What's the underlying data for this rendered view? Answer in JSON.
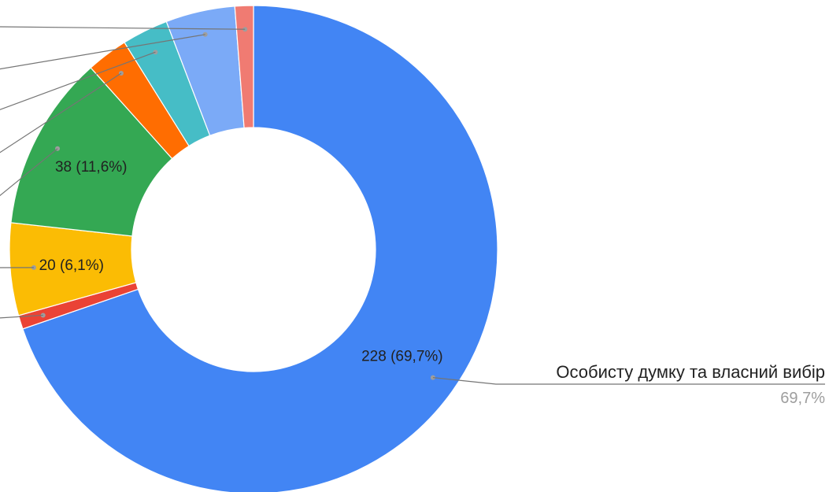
{
  "chart_data": {
    "type": "pie",
    "donut": true,
    "title": "",
    "slices": [
      {
        "value": 228,
        "percent": "69,7%",
        "label": "228 (69,7%)",
        "color": "#4285f4",
        "legend": "Особисту думку та власний вибір",
        "legend_percent": "69,7%"
      },
      {
        "value": 3,
        "percent": "0,9%",
        "label": "",
        "color": "#ea4335"
      },
      {
        "value": 20,
        "percent": "6,1%",
        "label": "20 (6,1%)",
        "color": "#fbbc04"
      },
      {
        "value": 38,
        "percent": "11,6%",
        "label": "38 (11,6%)",
        "color": "#34a853"
      },
      {
        "value": 9,
        "percent": "2,8%",
        "label": "",
        "color": "#ff6d01"
      },
      {
        "value": 10,
        "percent": "3,1%",
        "label": "",
        "color": "#46bdc6"
      },
      {
        "value": 15,
        "percent": "4,6%",
        "label": "",
        "color": "#7baaf7"
      },
      {
        "value": 4,
        "percent": "1,2%",
        "label": "",
        "color": "#f07b72"
      }
    ]
  }
}
